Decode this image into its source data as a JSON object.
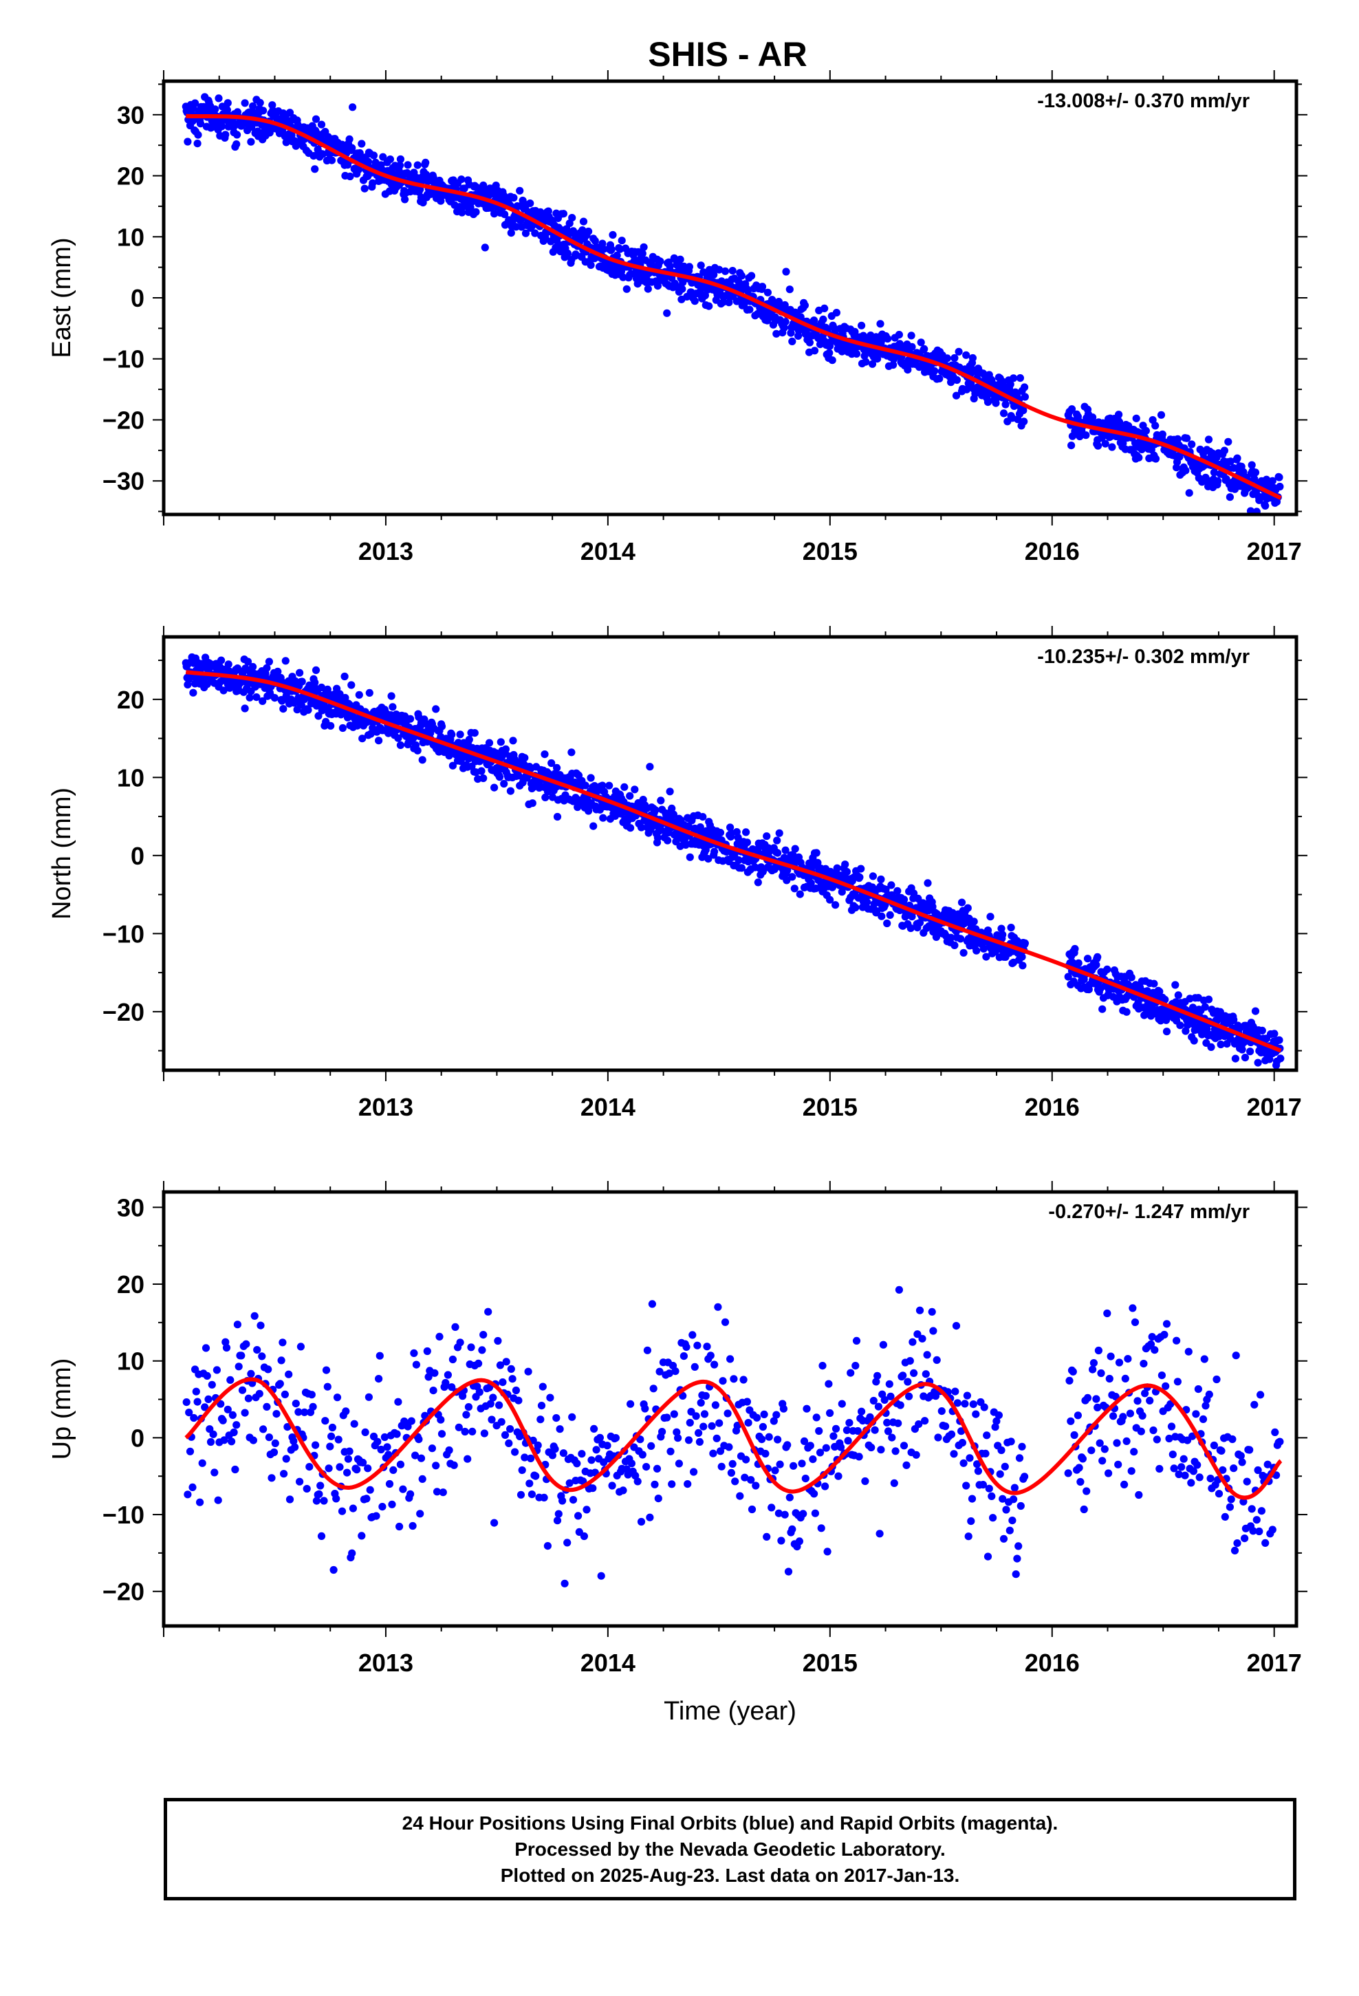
{
  "chart_title": "SHIS - AR",
  "colors": {
    "data": "#0000ff",
    "fit": "#ff0000",
    "axis": "#000000"
  },
  "chart_data": [
    {
      "type": "scatter",
      "name": "east",
      "ylabel": "East (mm)",
      "xlabel": "",
      "rate": "-13.008+/- 0.370 mm/yr",
      "xlim": [
        2012.0,
        2017.1
      ],
      "ylim": [
        -35.5,
        35.5
      ],
      "xticks": [
        2013,
        2014,
        2015,
        2016,
        2017
      ],
      "xtick_labels": [
        "2013",
        "2014",
        "2015",
        "2016",
        "2017"
      ],
      "yticks": [
        30,
        20,
        10,
        0,
        -10,
        -20,
        -30
      ],
      "ytick_labels": [
        "30",
        "20",
        "10",
        "0",
        "−10",
        "−20",
        "−30"
      ],
      "gaps": [
        [
          2015.88,
          2016.07
        ]
      ],
      "model": {
        "t0": 2012.1,
        "offset": 29.5,
        "rate": -13.008,
        "amp1": 1.6,
        "phase1": 1.2,
        "amp2": 0.4,
        "phase2": 0.5
      },
      "noise_sd": 1.6,
      "fit_series": {
        "name": "fit",
        "x": [
          2012.1,
          2012.5,
          2013.0,
          2013.5,
          2014.0,
          2014.5,
          2015.0,
          2015.5,
          2016.0,
          2016.5,
          2017.03
        ],
        "values": [
          29.8,
          28.6,
          20.0,
          15.5,
          6.5,
          2.0,
          -6.0,
          -11.0,
          -19.5,
          -24.0,
          -32.8
        ]
      }
    },
    {
      "type": "scatter",
      "name": "north",
      "ylabel": "North (mm)",
      "xlabel": "",
      "rate": "-10.235+/- 0.302 mm/yr",
      "xlim": [
        2012.0,
        2017.1
      ],
      "ylim": [
        -27.5,
        28.0
      ],
      "xticks": [
        2013,
        2014,
        2015,
        2016,
        2017
      ],
      "xtick_labels": [
        "2013",
        "2014",
        "2015",
        "2016",
        "2017"
      ],
      "yticks": [
        20,
        10,
        0,
        -10,
        -20
      ],
      "ytick_labels": [
        "20",
        "10",
        "0",
        "−10",
        "−20"
      ],
      "gaps": [
        [
          2015.88,
          2016.07
        ]
      ],
      "model": {
        "t0": 2012.1,
        "offset": 21.0,
        "rate": -10.235,
        "amp1": 2.2,
        "phase1": 0.4,
        "amp2": 0.3,
        "phase2": 1.0
      },
      "noise_sd": 1.3,
      "fit_series": {
        "name": "fit",
        "x": [
          2012.1,
          2012.5,
          2013.0,
          2013.5,
          2014.0,
          2014.5,
          2015.0,
          2015.5,
          2016.0,
          2016.5,
          2017.03
        ],
        "values": [
          23.5,
          22.0,
          17.0,
          12.0,
          7.0,
          1.5,
          -3.0,
          -8.5,
          -13.5,
          -19.0,
          -25.0
        ]
      }
    },
    {
      "type": "scatter",
      "name": "up",
      "ylabel": "Up (mm)",
      "xlabel": "Time (year)",
      "rate": "-0.270+/- 1.247 mm/yr",
      "xlim": [
        2012.0,
        2017.1
      ],
      "ylim": [
        -24.5,
        32.0
      ],
      "xticks": [
        2013,
        2014,
        2015,
        2016,
        2017
      ],
      "xtick_labels": [
        "2013",
        "2014",
        "2015",
        "2016",
        "2017"
      ],
      "yticks": [
        30,
        20,
        10,
        0,
        -10,
        -20
      ],
      "ytick_labels": [
        "30",
        "20",
        "10",
        "0",
        "−10",
        "−20"
      ],
      "gaps": [
        [
          2015.88,
          2016.07
        ]
      ],
      "model": {
        "t0": 2012.1,
        "offset": 0.0,
        "rate": -0.27,
        "amp1": 7.2,
        "phase1": -0.5,
        "amp2": 0.8,
        "phase2": 0.3
      },
      "noise_sd": 5.5,
      "fit_series": {
        "name": "fit",
        "x": [
          2012.1,
          2012.42,
          2012.83,
          2013.43,
          2013.83,
          2014.43,
          2014.83,
          2015.43,
          2015.83,
          2016.43,
          2016.83,
          2017.03
        ],
        "values": [
          0.0,
          7.5,
          -6.5,
          7.5,
          -6.8,
          7.3,
          -7.0,
          7.0,
          -7.2,
          6.8,
          -7.5,
          -3.0
        ]
      }
    }
  ],
  "footer": {
    "line1": "24 Hour Positions Using Final Orbits (blue) and Rapid Orbits (magenta).",
    "line2": "Processed by the Nevada Geodetic Laboratory.",
    "line3": "Plotted on 2025-Aug-23. Last data on 2017-Jan-13."
  }
}
